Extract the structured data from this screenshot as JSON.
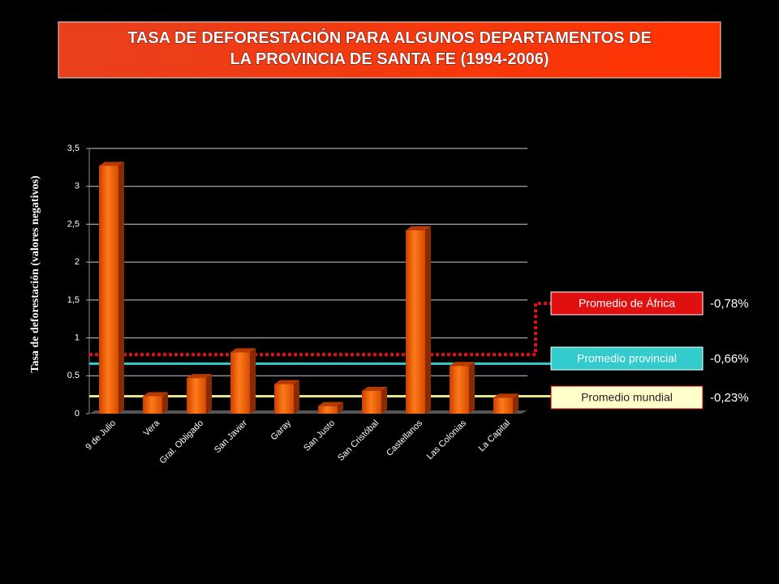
{
  "chart_data": {
    "type": "bar",
    "title": "TASA DE DEFORESTACIÓN PARA ALGUNOS DEPARTAMENTOS    DE LA PROVINCIA DE SANTA FE (1994-2006)",
    "y_label": "Tasa de deforestación (valores negativos)",
    "categories": [
      "9 de Julio",
      "Vera",
      "Gral. Obligado",
      "San Javier",
      "Garay",
      "San Justo",
      "San Cristóbal",
      "Castellanos",
      "Las Colonias",
      "La Capital"
    ],
    "values": [
      3.27,
      0.23,
      0.47,
      0.81,
      0.39,
      0.1,
      0.3,
      2.42,
      0.63,
      0.21
    ],
    "color": "#e85a0c",
    "ylim": [
      0,
      3.5
    ],
    "yticks": [
      0,
      0.5,
      1,
      {
        "value": 1.5,
        "label": "1,5"
      },
      2,
      {
        "value": 2.5,
        "label": "2,5"
      },
      3,
      {
        "value": 3.5,
        "label": "3,5"
      }
    ],
    "grid": true,
    "reference_lines": {
      "names": [
        "Promedio de África",
        "Promedio provincial",
        "Promedio mundial"
      ],
      "values": [
        0.78,
        0.66,
        0.23
      ],
      "value_labels": [
        "-0,78%",
        "-0,66%",
        "-0,23%"
      ],
      "colors": [
        "#e01010",
        "#33cccc",
        "#e8e08a"
      ]
    }
  }
}
